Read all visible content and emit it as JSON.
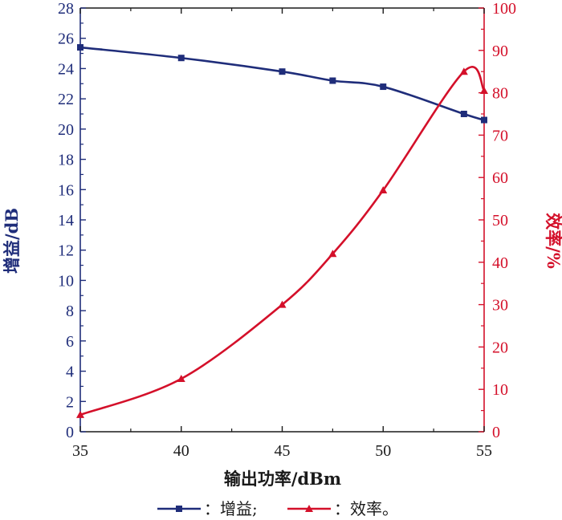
{
  "chart_data": {
    "type": "line",
    "xlabel": "输出功率/dBm",
    "ylabel_left": "增益/dB",
    "ylabel_right": "效率/%",
    "xlim": [
      35,
      55
    ],
    "ylim_left": [
      0,
      28
    ],
    "ylim_right": [
      0,
      100
    ],
    "x_ticks": [
      35,
      40,
      45,
      50,
      55
    ],
    "y_left_ticks": [
      0,
      2,
      4,
      6,
      8,
      10,
      12,
      14,
      16,
      18,
      20,
      22,
      24,
      26,
      28
    ],
    "y_right_ticks": [
      0,
      10,
      20,
      30,
      40,
      50,
      60,
      70,
      80,
      90,
      100
    ],
    "grid": false,
    "legend_position": "bottom",
    "series": [
      {
        "name": "：增益;",
        "axis": "left",
        "color": "#1f2d7a",
        "marker": "square",
        "x": [
          35,
          40,
          45,
          47.5,
          50,
          54,
          55
        ],
        "y": [
          25.4,
          24.7,
          23.8,
          23.2,
          22.8,
          21.0,
          20.6
        ]
      },
      {
        "name": "：效率。",
        "axis": "right",
        "color": "#d4102a",
        "marker": "triangle",
        "x": [
          35,
          40,
          45,
          47.5,
          50,
          54,
          55
        ],
        "y": [
          4,
          12.5,
          30,
          42,
          57,
          85,
          80.5
        ]
      }
    ]
  }
}
